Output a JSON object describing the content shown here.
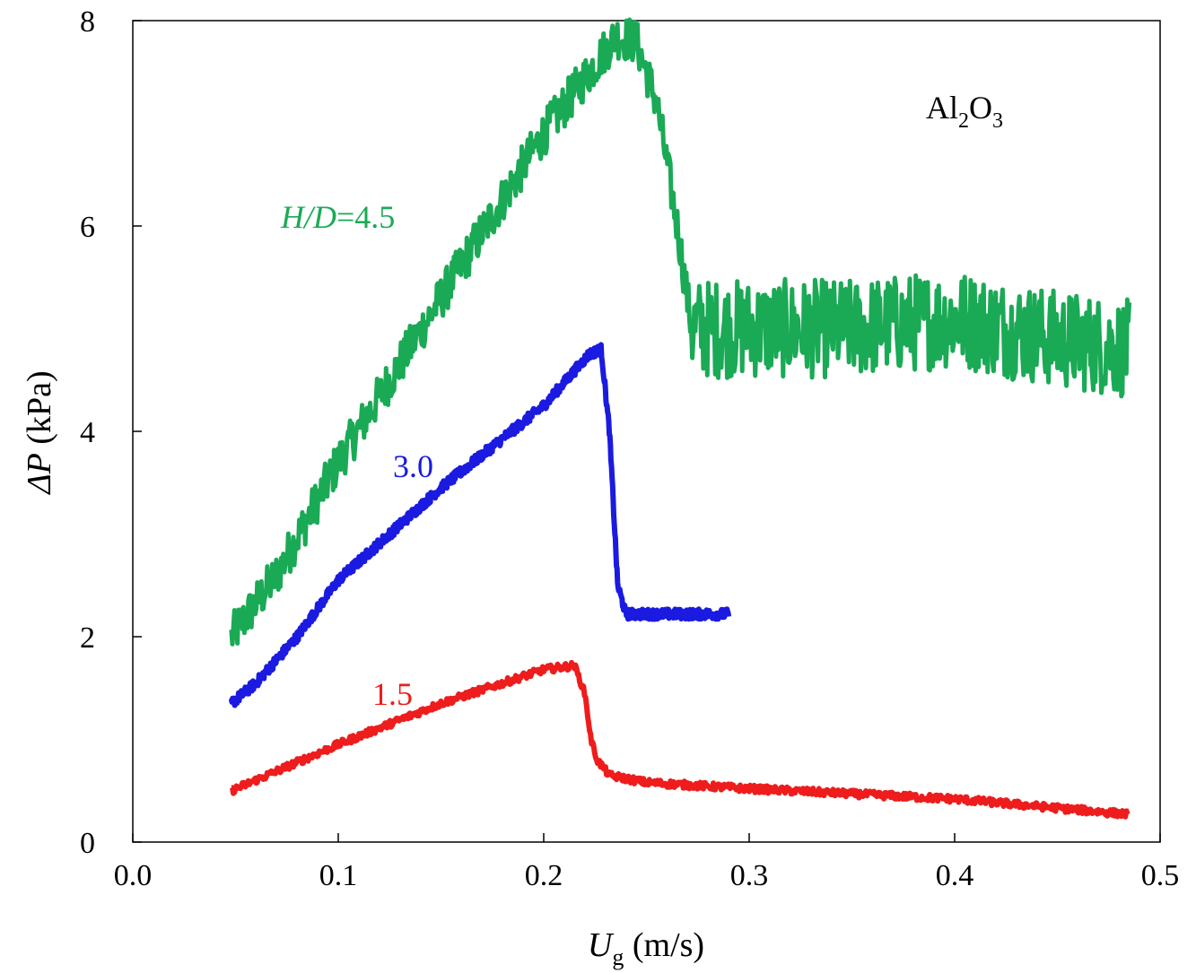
{
  "chart_data": {
    "type": "line",
    "xlabel": {
      "symbol": "U",
      "subscript": "g",
      "unit": " (m/s)"
    },
    "ylabel": {
      "symbol": "ΔP",
      "unit": " (kPa)"
    },
    "xlim": [
      0.0,
      0.5
    ],
    "ylim": [
      0,
      8
    ],
    "xticks": [
      0.0,
      0.1,
      0.2,
      0.3,
      0.4,
      0.5
    ],
    "xtick_labels": [
      "0.0",
      "0.1",
      "0.2",
      "0.3",
      "0.4",
      "0.5"
    ],
    "yticks": [
      0,
      2,
      4,
      6,
      8
    ],
    "ytick_labels": [
      "0",
      "2",
      "4",
      "6",
      "8"
    ],
    "grid": false,
    "legend": "none",
    "annotation": {
      "parts": [
        "Al",
        "2",
        "O",
        "3"
      ]
    },
    "series": [
      {
        "name": "H/D=4.5",
        "label_parts": [
          "H/D",
          "=4.5"
        ],
        "color": "#1aaa55",
        "noise": 0.22,
        "points": [
          [
            0.048,
            2.0
          ],
          [
            0.07,
            2.6
          ],
          [
            0.1,
            3.7
          ],
          [
            0.15,
            5.3
          ],
          [
            0.2,
            6.9
          ],
          [
            0.235,
            7.85
          ],
          [
            0.245,
            7.8
          ],
          [
            0.255,
            7.2
          ],
          [
            0.265,
            6.0
          ],
          [
            0.272,
            5.0
          ],
          [
            0.3,
            5.0
          ],
          [
            0.35,
            5.0
          ],
          [
            0.4,
            5.1
          ],
          [
            0.45,
            4.9
          ],
          [
            0.485,
            4.8
          ]
        ]
      },
      {
        "name": "3.0",
        "label_parts": [
          "3.0"
        ],
        "color": "#1a1ae0",
        "noise": 0.05,
        "points": [
          [
            0.048,
            1.35
          ],
          [
            0.06,
            1.55
          ],
          [
            0.08,
            2.0
          ],
          [
            0.1,
            2.55
          ],
          [
            0.15,
            3.45
          ],
          [
            0.2,
            4.25
          ],
          [
            0.222,
            4.75
          ],
          [
            0.228,
            4.8
          ],
          [
            0.232,
            4.0
          ],
          [
            0.236,
            2.5
          ],
          [
            0.24,
            2.22
          ],
          [
            0.29,
            2.22
          ]
        ]
      },
      {
        "name": "1.5",
        "label_parts": [
          "1.5"
        ],
        "color": "#ee1c1c",
        "noise": 0.035,
        "points": [
          [
            0.048,
            0.5
          ],
          [
            0.1,
            0.95
          ],
          [
            0.15,
            1.35
          ],
          [
            0.2,
            1.68
          ],
          [
            0.215,
            1.72
          ],
          [
            0.22,
            1.45
          ],
          [
            0.223,
            1.0
          ],
          [
            0.226,
            0.8
          ],
          [
            0.232,
            0.65
          ],
          [
            0.25,
            0.58
          ],
          [
            0.3,
            0.52
          ],
          [
            0.4,
            0.42
          ],
          [
            0.485,
            0.27
          ]
        ]
      }
    ]
  }
}
